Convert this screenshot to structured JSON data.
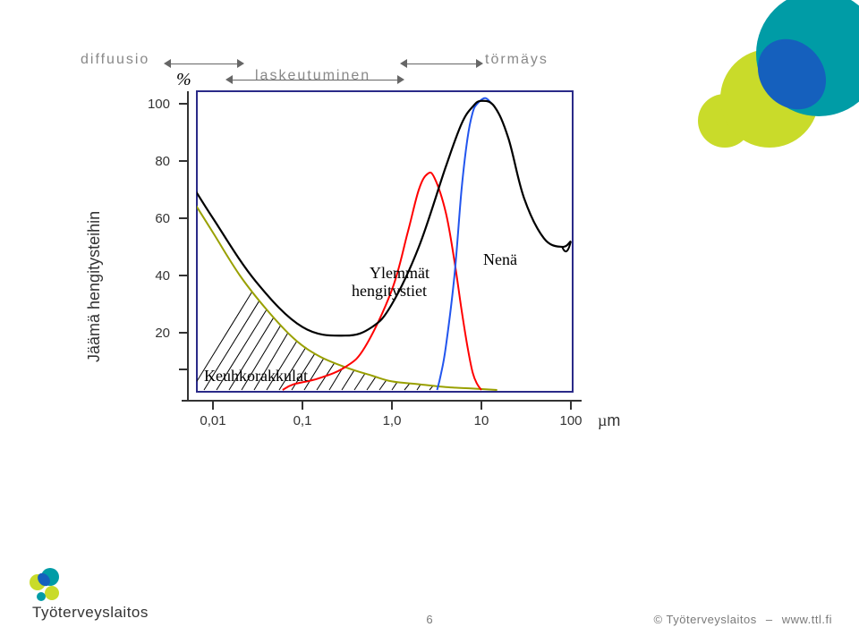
{
  "header": {
    "diffuusio": "diffuusio",
    "laskeutuminen": "laskeutuminen",
    "tormays": "törmäys"
  },
  "chart": {
    "type": "line",
    "axes": {
      "x_scale": "log",
      "x_ticks": [
        "0,01",
        "0,1",
        "1,0",
        "10",
        "100"
      ],
      "x_tick_values": [
        0.01,
        0.1,
        1.0,
        10,
        100
      ],
      "x_unit": "µm",
      "y_unit": "%",
      "y_ticks": [
        "20",
        "40",
        "60",
        "80",
        "100"
      ],
      "y_tick_values": [
        20,
        40,
        60,
        80,
        100
      ],
      "ylim": [
        0,
        100
      ],
      "xlim": [
        0.005,
        150
      ],
      "y_label": "Jäämä hengitysteihin"
    },
    "colors": {
      "nose": "#000000",
      "upper_airways": "#ff0000",
      "alveoli": "#99a000",
      "something_blue": "#2255ee",
      "hatch": "#000000",
      "frame": "#333333",
      "axis": "#333333",
      "background": "#ffffff"
    },
    "line_width": 2.0,
    "curves": {
      "nose": {
        "label": "Nenä",
        "label_color": "#000000",
        "color": "#000000",
        "points": [
          [
            0.005,
            75
          ],
          [
            0.01,
            60
          ],
          [
            0.03,
            38
          ],
          [
            0.1,
            22
          ],
          [
            0.3,
            19
          ],
          [
            0.6,
            22
          ],
          [
            1,
            30
          ],
          [
            2,
            50
          ],
          [
            4,
            78
          ],
          [
            6,
            93
          ],
          [
            8,
            99
          ],
          [
            10,
            101
          ],
          [
            14,
            99
          ],
          [
            20,
            88
          ],
          [
            30,
            67
          ],
          [
            50,
            53
          ],
          [
            80,
            50
          ],
          [
            100,
            52
          ]
        ]
      },
      "upper_airways": {
        "label": "Ylemmät hengitystiet",
        "color": "#ff0000",
        "points": [
          [
            0.06,
            0
          ],
          [
            0.08,
            2
          ],
          [
            0.15,
            4
          ],
          [
            0.3,
            8
          ],
          [
            0.5,
            15
          ],
          [
            1,
            35
          ],
          [
            1.5,
            55
          ],
          [
            2,
            70
          ],
          [
            2.5,
            75.5
          ],
          [
            3,
            74
          ],
          [
            4,
            62
          ],
          [
            5,
            45
          ],
          [
            6,
            28
          ],
          [
            7,
            15
          ],
          [
            8,
            6
          ],
          [
            9,
            2
          ],
          [
            10,
            0
          ]
        ]
      },
      "alveoli": {
        "label": "Keuhkorakkulat",
        "label_color": "#000000",
        "color": "#99a000",
        "points": [
          [
            0.005,
            70
          ],
          [
            0.01,
            55
          ],
          [
            0.02,
            40
          ],
          [
            0.04,
            28
          ],
          [
            0.08,
            18
          ],
          [
            0.15,
            12
          ],
          [
            0.3,
            8
          ],
          [
            0.6,
            5
          ],
          [
            1,
            3
          ],
          [
            2,
            2
          ],
          [
            4,
            1
          ],
          [
            8,
            0.5
          ],
          [
            15,
            0
          ]
        ]
      },
      "blue": {
        "color": "#2255ee",
        "points": [
          [
            3.2,
            0
          ],
          [
            3.5,
            5
          ],
          [
            4,
            15
          ],
          [
            5,
            40
          ],
          [
            6,
            70
          ],
          [
            7,
            88
          ],
          [
            8,
            97
          ],
          [
            9,
            100
          ],
          [
            11,
            102
          ],
          [
            13,
            100
          ]
        ]
      }
    },
    "hatch": {
      "region": "under-alveoli",
      "spacing": 14,
      "angle_deg": 60,
      "stroke_width": 1
    }
  },
  "annotations": {
    "nena": "Nenä",
    "ylemmat": "Ylemmät",
    "hengitystiet": "hengitystiet",
    "keuhkorakkulat": "Keuhkorakkulat"
  },
  "brand": {
    "name": "Työterveyslaitos",
    "url": "www.ttl.fi",
    "footer_sep": "–",
    "copyright": "©",
    "page_number": "6",
    "logo_colors": {
      "light_green": "#c9db2a",
      "teal": "#009ca6",
      "blue": "#1560bd"
    }
  }
}
